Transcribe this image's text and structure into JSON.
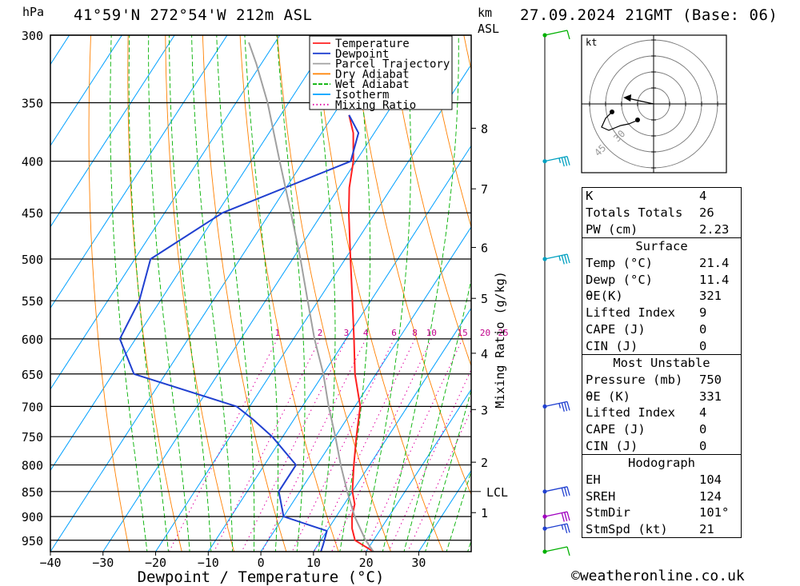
{
  "header": {
    "location": "41°59'N  272°54'W  212m  ASL",
    "datetime": "27.09.2024  21GMT  (Base: 06)",
    "left_unit": "hPa",
    "right_unit_1": "km",
    "right_unit_2": "ASL"
  },
  "footer": {
    "credit": "©weatheronline.co.uk"
  },
  "chart_data": {
    "type": "skewt",
    "xlabel": "Dewpoint / Temperature (°C)",
    "ylabel_right": "Mixing Ratio (g/kg)",
    "x_ticks": [
      -40,
      -30,
      -20,
      -10,
      0,
      10,
      20,
      30
    ],
    "pressure_ticks": [
      300,
      350,
      400,
      450,
      500,
      550,
      600,
      650,
      700,
      750,
      800,
      850,
      900,
      950
    ],
    "pressure_range": [
      300,
      975
    ],
    "height_km_ticks": [
      {
        "label": "8",
        "p": 371
      },
      {
        "label": "7",
        "p": 426
      },
      {
        "label": "6",
        "p": 487
      },
      {
        "label": "5",
        "p": 547
      },
      {
        "label": "4",
        "p": 620
      },
      {
        "label": "3",
        "p": 705
      },
      {
        "label": "2",
        "p": 795
      },
      {
        "label": "1",
        "p": 892
      }
    ],
    "lcl": {
      "label": "LCL",
      "p": 850
    },
    "mixing_ratio_labels": [
      "1",
      "2",
      "3",
      "4",
      "6",
      "8",
      "10",
      "15",
      "20",
      "25"
    ],
    "mixing_ratio_values": [
      1,
      2,
      3,
      4,
      6,
      8,
      10,
      15,
      20,
      25
    ],
    "legend": [
      {
        "name": "Temperature",
        "color": "#ff2020",
        "style": "solid"
      },
      {
        "name": "Dewpoint",
        "color": "#2040d0",
        "style": "solid"
      },
      {
        "name": "Parcel Trajectory",
        "color": "#a0a0a0",
        "style": "solid"
      },
      {
        "name": "Dry Adiabat",
        "color": "#ff8000",
        "style": "solid"
      },
      {
        "name": "Wet Adiabat",
        "color": "#00b000",
        "style": "dashed"
      },
      {
        "name": "Isotherm",
        "color": "#00a0ff",
        "style": "solid"
      },
      {
        "name": "Mixing Ratio",
        "color": "#e000a0",
        "style": "dotted"
      }
    ],
    "series": [
      {
        "name": "Temperature",
        "color": "#ff2020",
        "points": [
          [
            975,
            21.4
          ],
          [
            950,
            16.5
          ],
          [
            925,
            14.5
          ],
          [
            900,
            13
          ],
          [
            875,
            12
          ],
          [
            850,
            10
          ],
          [
            800,
            7
          ],
          [
            750,
            4
          ],
          [
            700,
            1
          ],
          [
            650,
            -4
          ],
          [
            600,
            -8.5
          ],
          [
            550,
            -13.5
          ],
          [
            500,
            -19
          ],
          [
            450,
            -25
          ],
          [
            425,
            -28
          ],
          [
            400,
            -30.5
          ],
          [
            375,
            -34
          ],
          [
            360,
            -37
          ]
        ]
      },
      {
        "name": "Dewpoint",
        "color": "#2040d0",
        "points": [
          [
            975,
            11.4
          ],
          [
            960,
            11
          ],
          [
            930,
            10
          ],
          [
            900,
            0
          ],
          [
            850,
            -4
          ],
          [
            800,
            -4
          ],
          [
            750,
            -12
          ],
          [
            720,
            -18
          ],
          [
            700,
            -22.5
          ],
          [
            650,
            -46
          ],
          [
            600,
            -53
          ],
          [
            550,
            -54
          ],
          [
            500,
            -57
          ],
          [
            450,
            -49
          ],
          [
            400,
            -31
          ],
          [
            375,
            -33
          ],
          [
            360,
            -37
          ]
        ]
      },
      {
        "name": "Parcel Trajectory",
        "color": "#a0a0a0",
        "points": [
          [
            975,
            21.4
          ],
          [
            950,
            18.5
          ],
          [
            900,
            13.5
          ],
          [
            850,
            9
          ],
          [
            800,
            4.5
          ],
          [
            750,
            0
          ],
          [
            700,
            -5
          ],
          [
            650,
            -10
          ],
          [
            600,
            -16
          ],
          [
            550,
            -22
          ],
          [
            500,
            -28.5
          ],
          [
            450,
            -36
          ],
          [
            400,
            -44.5
          ],
          [
            350,
            -54
          ],
          [
            320,
            -61
          ],
          [
            305,
            -65
          ]
        ]
      }
    ],
    "wind_barbs": [
      {
        "p": 300,
        "speed_kt": 10,
        "color": "#00b000"
      },
      {
        "p": 400,
        "speed_kt": 35,
        "color": "#00a0c0"
      },
      {
        "p": 500,
        "speed_kt": 35,
        "color": "#00a0c0"
      },
      {
        "p": 700,
        "speed_kt": 35,
        "color": "#2040d0"
      },
      {
        "p": 850,
        "speed_kt": 30,
        "color": "#2040d0"
      },
      {
        "p": 900,
        "speed_kt": 30,
        "color": "#a000c0"
      },
      {
        "p": 925,
        "speed_kt": 25,
        "color": "#2040d0"
      },
      {
        "p": 975,
        "speed_kt": 10,
        "color": "#00b000"
      }
    ],
    "hodograph": {
      "unit": "kt",
      "ring_labels": [
        "30",
        "45"
      ],
      "trace_points": [
        [
          0.78,
          0.53
        ],
        [
          0.73,
          0.66
        ],
        [
          0.69,
          0.62
        ],
        [
          0.65,
          0.6
        ],
        [
          0.62,
          0.66
        ],
        [
          0.6,
          0.67
        ],
        [
          0.63,
          0.78
        ],
        [
          0.92,
          0.98
        ],
        [
          1.0,
          1.0
        ]
      ],
      "storm_motion_kt": 21,
      "storm_dir_deg": 101
    }
  },
  "indices": {
    "rows": [
      {
        "label": "K",
        "value": "4"
      },
      {
        "label": "Totals Totals",
        "value": "26"
      },
      {
        "label": "PW (cm)",
        "value": "2.23"
      }
    ],
    "surface": {
      "title": "Surface",
      "rows": [
        {
          "label": "Temp (°C)",
          "value": "21.4"
        },
        {
          "label": "Dewp (°C)",
          "value": "11.4"
        },
        {
          "label": "θE(K)",
          "value": "321"
        },
        {
          "label": "Lifted Index",
          "value": "9"
        },
        {
          "label": "CAPE (J)",
          "value": "0"
        },
        {
          "label": "CIN (J)",
          "value": "0"
        }
      ]
    },
    "most_unstable": {
      "title": "Most Unstable",
      "rows": [
        {
          "label": "Pressure (mb)",
          "value": "750"
        },
        {
          "label": "θE (K)",
          "value": "331"
        },
        {
          "label": "Lifted Index",
          "value": "4"
        },
        {
          "label": "CAPE (J)",
          "value": "0"
        },
        {
          "label": "CIN (J)",
          "value": "0"
        }
      ]
    },
    "hodograph_section": {
      "title": "Hodograph",
      "rows": [
        {
          "label": "EH",
          "value": "104"
        },
        {
          "label": "SREH",
          "value": "124"
        },
        {
          "label": "StmDir",
          "value": "101°"
        },
        {
          "label": "StmSpd (kt)",
          "value": "21"
        }
      ]
    }
  }
}
